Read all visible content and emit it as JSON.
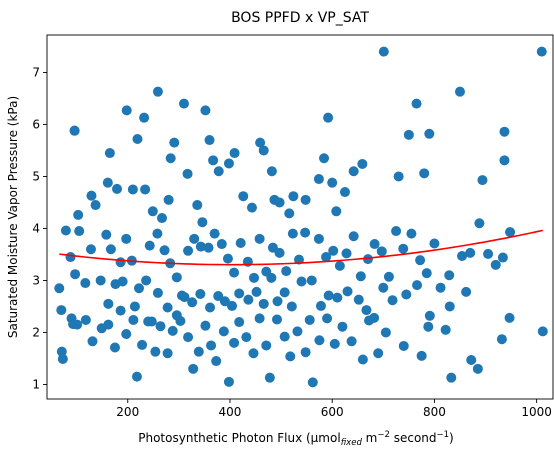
{
  "chart_data": {
    "type": "scatter",
    "title": "BOS PPFD x VP_SAT",
    "xlabel": {
      "prefix": "Photosynthetic Photon Flux (µmol",
      "sub": "fixed",
      "mid": " m",
      "sup1": "−2",
      "mid2": " second",
      "sup2": "−1",
      "suffix": ")"
    },
    "ylabel": "Saturated Moisture Vapor Pressure (kPa)",
    "xlim": [
      42,
      1032
    ],
    "ylim": [
      0.72,
      7.72
    ],
    "xticks": [
      {
        "value": 200,
        "label": "200"
      },
      {
        "value": 400,
        "label": "400"
      },
      {
        "value": 600,
        "label": "600"
      },
      {
        "value": 800,
        "label": "800"
      },
      {
        "value": 1000,
        "label": "1000"
      }
    ],
    "yticks": [
      {
        "value": 1,
        "label": "1"
      },
      {
        "value": 2,
        "label": "2"
      },
      {
        "value": 3,
        "label": "3"
      },
      {
        "value": 4,
        "label": "4"
      },
      {
        "value": 5,
        "label": "5"
      },
      {
        "value": 6,
        "label": "6"
      },
      {
        "value": 7,
        "label": "7"
      }
    ],
    "grid": false,
    "colors": {
      "points": "#1f77b4",
      "fit": "#ff0000"
    },
    "series": [
      {
        "type": "scatter",
        "points": [
          [
            96,
            5.88
          ],
          [
            96,
            5.88
          ],
          [
            103,
            4.26
          ],
          [
            129,
            4.63
          ],
          [
            137,
            4.45
          ],
          [
            161,
            4.88
          ],
          [
            165,
            5.45
          ],
          [
            179,
            4.76
          ],
          [
            198,
            6.27
          ],
          [
            210,
            4.75
          ],
          [
            219,
            5.72
          ],
          [
            232,
            6.13
          ],
          [
            234,
            4.75
          ],
          [
            249,
            4.33
          ],
          [
            259,
            6.63
          ],
          [
            267,
            4.2
          ],
          [
            280,
            4.55
          ],
          [
            284,
            5.35
          ],
          [
            291,
            5.65
          ],
          [
            310,
            6.4
          ],
          [
            317,
            5.05
          ],
          [
            336,
            4.45
          ],
          [
            346,
            4.12
          ],
          [
            352,
            6.27
          ],
          [
            360,
            5.7
          ],
          [
            367,
            5.31
          ],
          [
            378,
            5.1
          ],
          [
            398,
            5.25
          ],
          [
            409,
            5.45
          ],
          [
            426,
            4.62
          ],
          [
            443,
            4.4
          ],
          [
            459,
            5.65
          ],
          [
            466,
            5.5
          ],
          [
            482,
            5.1
          ],
          [
            487,
            4.55
          ],
          [
            497,
            4.5
          ],
          [
            516,
            4.29
          ],
          [
            524,
            4.62
          ],
          [
            548,
            4.55
          ],
          [
            574,
            4.95
          ],
          [
            584,
            5.35
          ],
          [
            592,
            6.13
          ],
          [
            600,
            4.88
          ],
          [
            608,
            4.33
          ],
          [
            625,
            4.7
          ],
          [
            642,
            5.1
          ],
          [
            659,
            5.24
          ],
          [
            701,
            7.4
          ],
          [
            730,
            5.0
          ],
          [
            750,
            5.8
          ],
          [
            765,
            6.4
          ],
          [
            780,
            5.06
          ],
          [
            790,
            5.82
          ],
          [
            850,
            6.63
          ],
          [
            894,
            4.93
          ],
          [
            937,
            5.31
          ],
          [
            937,
            5.86
          ],
          [
            1010,
            7.4
          ],
          [
            66,
            2.85
          ],
          [
            79,
            3.96
          ],
          [
            88,
            3.45
          ],
          [
            97,
            3.12
          ],
          [
            105,
            3.95
          ],
          [
            117,
            2.95
          ],
          [
            128,
            3.6
          ],
          [
            147,
            3.0
          ],
          [
            158,
            3.88
          ],
          [
            167,
            3.6
          ],
          [
            176,
            2.93
          ],
          [
            186,
            3.35
          ],
          [
            197,
            3.8
          ],
          [
            208,
            3.38
          ],
          [
            222,
            2.85
          ],
          [
            236,
            3.0
          ],
          [
            243,
            3.67
          ],
          [
            258,
            3.9
          ],
          [
            272,
            3.58
          ],
          [
            283,
            3.33
          ],
          [
            296,
            3.06
          ],
          [
            306,
            2.71
          ],
          [
            318,
            3.57
          ],
          [
            330,
            3.8
          ],
          [
            343,
            3.65
          ],
          [
            358,
            3.63
          ],
          [
            370,
            3.9
          ],
          [
            384,
            3.7
          ],
          [
            396,
            3.42
          ],
          [
            408,
            3.15
          ],
          [
            421,
            3.72
          ],
          [
            435,
            3.36
          ],
          [
            447,
            3.05
          ],
          [
            458,
            3.8
          ],
          [
            471,
            3.17
          ],
          [
            484,
            3.63
          ],
          [
            497,
            3.53
          ],
          [
            510,
            3.18
          ],
          [
            523,
            3.9
          ],
          [
            535,
            3.4
          ],
          [
            547,
            3.92
          ],
          [
            560,
            3.0
          ],
          [
            574,
            3.8
          ],
          [
            588,
            3.45
          ],
          [
            602,
            3.57
          ],
          [
            615,
            3.28
          ],
          [
            628,
            3.52
          ],
          [
            642,
            3.85
          ],
          [
            656,
            3.08
          ],
          [
            670,
            3.41
          ],
          [
            683,
            3.7
          ],
          [
            697,
            3.56
          ],
          [
            711,
            3.07
          ],
          [
            725,
            3.95
          ],
          [
            739,
            3.61
          ],
          [
            755,
            3.9
          ],
          [
            772,
            3.39
          ],
          [
            785,
            3.14
          ],
          [
            800,
            3.71
          ],
          [
            829,
            3.1
          ],
          [
            870,
            3.53
          ],
          [
            905,
            3.51
          ],
          [
            934,
            3.44
          ],
          [
            948,
            3.93
          ],
          [
            70,
            2.43
          ],
          [
            71,
            1.63
          ],
          [
            73,
            1.49
          ],
          [
            90,
            2.27
          ],
          [
            118,
            2.24
          ],
          [
            131,
            1.83
          ],
          [
            149,
            2.08
          ],
          [
            162,
            2.15
          ],
          [
            175,
            1.71
          ],
          [
            186,
            2.42
          ],
          [
            197,
            1.97
          ],
          [
            211,
            2.24
          ],
          [
            218,
            1.15
          ],
          [
            228,
            1.76
          ],
          [
            240,
            2.21
          ],
          [
            254,
            1.63
          ],
          [
            264,
            2.12
          ],
          [
            278,
            1.6
          ],
          [
            288,
            2.03
          ],
          [
            303,
            2.22
          ],
          [
            318,
            1.91
          ],
          [
            328,
            1.3
          ],
          [
            339,
            1.63
          ],
          [
            352,
            2.13
          ],
          [
            363,
            1.75
          ],
          [
            373,
            1.45
          ],
          [
            388,
            2.02
          ],
          [
            398,
            1.05
          ],
          [
            408,
            1.8
          ],
          [
            418,
            2.2
          ],
          [
            432,
            1.91
          ],
          [
            446,
            1.6
          ],
          [
            458,
            2.27
          ],
          [
            471,
            1.75
          ],
          [
            478,
            1.13
          ],
          [
            492,
            2.25
          ],
          [
            507,
            1.92
          ],
          [
            518,
            1.54
          ],
          [
            532,
            2.02
          ],
          [
            548,
            1.62
          ],
          [
            562,
            1.04
          ],
          [
            575,
            1.85
          ],
          [
            590,
            2.27
          ],
          [
            605,
            1.78
          ],
          [
            620,
            2.11
          ],
          [
            638,
            1.83
          ],
          [
            660,
            1.48
          ],
          [
            672,
            2.23
          ],
          [
            690,
            1.6
          ],
          [
            705,
            2.0
          ],
          [
            740,
            1.74
          ],
          [
            775,
            1.55
          ],
          [
            791,
            2.32
          ],
          [
            822,
            2.05
          ],
          [
            833,
            1.13
          ],
          [
            872,
            1.47
          ],
          [
            885,
            1.3
          ],
          [
            932,
            1.87
          ],
          [
            947,
            2.28
          ],
          [
            1012,
            2.02
          ],
          [
            93,
            2.16
          ],
          [
            101,
            2.15
          ],
          [
            162,
            2.55
          ],
          [
            190,
            2.98
          ],
          [
            214,
            2.5
          ],
          [
            247,
            2.21
          ],
          [
            259,
            2.76
          ],
          [
            278,
            2.48
          ],
          [
            296,
            2.33
          ],
          [
            311,
            2.68
          ],
          [
            326,
            2.58
          ],
          [
            342,
            2.74
          ],
          [
            361,
            2.48
          ],
          [
            377,
            2.7
          ],
          [
            390,
            2.6
          ],
          [
            404,
            2.51
          ],
          [
            418,
            2.75
          ],
          [
            436,
            2.63
          ],
          [
            452,
            2.78
          ],
          [
            466,
            2.55
          ],
          [
            481,
            3.05
          ],
          [
            493,
            2.6
          ],
          [
            507,
            2.77
          ],
          [
            521,
            2.5
          ],
          [
            540,
            2.98
          ],
          [
            556,
            2.24
          ],
          [
            578,
            2.51
          ],
          [
            593,
            2.71
          ],
          [
            610,
            2.67
          ],
          [
            630,
            2.79
          ],
          [
            652,
            2.63
          ],
          [
            667,
            2.43
          ],
          [
            682,
            2.28
          ],
          [
            700,
            2.86
          ],
          [
            718,
            2.62
          ],
          [
            745,
            2.73
          ],
          [
            766,
            2.91
          ],
          [
            788,
            2.11
          ],
          [
            812,
            2.86
          ],
          [
            830,
            2.5
          ],
          [
            862,
            2.78
          ],
          [
            888,
            4.1
          ],
          [
            920,
            3.3
          ],
          [
            854,
            3.47
          ]
        ]
      },
      {
        "type": "line",
        "fit": {
          "kind": "quadratic",
          "coef": [
            3.593,
            -0.001436,
            1.78e-06
          ]
        },
        "x_range": [
          66,
          1012
        ]
      }
    ]
  }
}
